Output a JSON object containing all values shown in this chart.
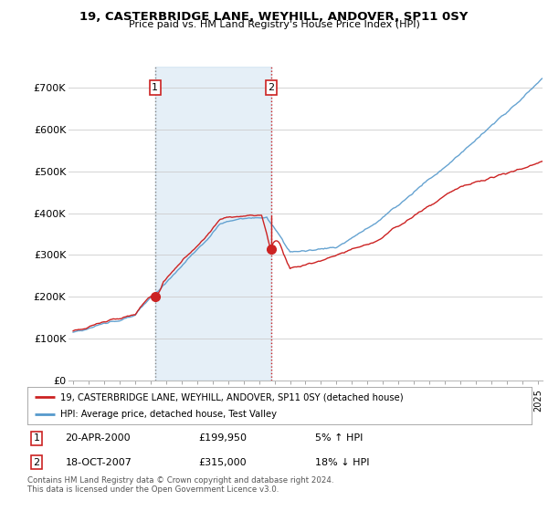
{
  "title": "19, CASTERBRIDGE LANE, WEYHILL, ANDOVER, SP11 0SY",
  "subtitle": "Price paid vs. HM Land Registry's House Price Index (HPI)",
  "ylabel_ticks": [
    "£0",
    "£100K",
    "£200K",
    "£300K",
    "£400K",
    "£500K",
    "£600K",
    "£700K"
  ],
  "ytick_values": [
    0,
    100000,
    200000,
    300000,
    400000,
    500000,
    600000,
    700000
  ],
  "ylim": [
    0,
    750000
  ],
  "xlim_start": 1994.7,
  "xlim_end": 2025.3,
  "hpi_color": "#5599cc",
  "price_color": "#cc2222",
  "t1_x": 2000.29,
  "t1_y": 199950,
  "t2_x": 2007.79,
  "t2_y": 315000,
  "legend_line1": "19, CASTERBRIDGE LANE, WEYHILL, ANDOVER, SP11 0SY (detached house)",
  "legend_line2": "HPI: Average price, detached house, Test Valley",
  "table_row1": [
    "1",
    "20-APR-2000",
    "£199,950",
    "5% ↑ HPI"
  ],
  "table_row2": [
    "2",
    "18-OCT-2007",
    "£315,000",
    "18% ↓ HPI"
  ],
  "footnote": "Contains HM Land Registry data © Crown copyright and database right 2024.\nThis data is licensed under the Open Government Licence v3.0.",
  "bg_color": "#ffffff",
  "grid_color": "#cccccc",
  "shade_color": "#ddeeff"
}
